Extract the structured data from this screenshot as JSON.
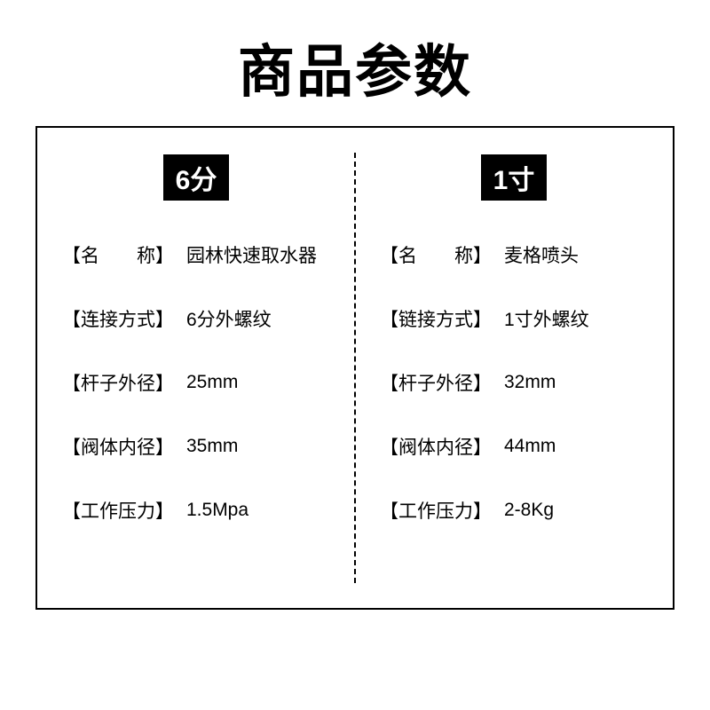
{
  "title": "商品参数",
  "colors": {
    "background": "#ffffff",
    "text": "#000000",
    "badge_bg": "#000000",
    "badge_text": "#ffffff",
    "border": "#000000"
  },
  "typography": {
    "title_fontsize": 64,
    "title_weight": 900,
    "badge_fontsize": 30,
    "row_fontsize": 21
  },
  "layout": {
    "box_border_width": 2,
    "divider_style": "dashed",
    "column_count": 2
  },
  "left": {
    "header": "6分",
    "rows": [
      {
        "label": "【名　　称】",
        "value": "园林快速取水器"
      },
      {
        "label": "【连接方式】",
        "value": "6分外螺纹"
      },
      {
        "label": "【杆子外径】",
        "value": "25mm"
      },
      {
        "label": "【阀体内径】",
        "value": "35mm"
      },
      {
        "label": "【工作压力】",
        "value": "1.5Mpa"
      }
    ]
  },
  "right": {
    "header": "1寸",
    "rows": [
      {
        "label": "【名　　称】",
        "value": "麦格喷头"
      },
      {
        "label": "【链接方式】",
        "value": "1寸外螺纹"
      },
      {
        "label": "【杆子外径】",
        "value": "32mm"
      },
      {
        "label": "【阀体内径】",
        "value": "44mm"
      },
      {
        "label": "【工作压力】",
        "value": "2-8Kg"
      }
    ]
  }
}
